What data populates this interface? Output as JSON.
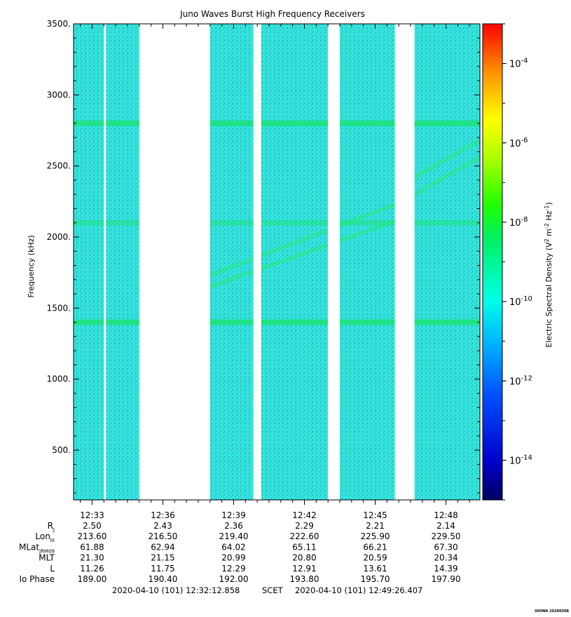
{
  "chart_data": {
    "type": "heatmap",
    "title": "Juno Waves Burst High Frequency Receivers",
    "ylabel": "Frequency (kHz)",
    "ylim": [
      150,
      3500
    ],
    "yticks": [
      "3500.",
      "3000.",
      "2500.",
      "2000.",
      "1500.",
      "1000.",
      "500."
    ],
    "ytick_values": [
      3500,
      3000,
      2500,
      2000,
      1500,
      1000,
      500
    ],
    "x_tick_labels": [
      "12:33",
      "12:36",
      "12:39",
      "12:42",
      "12:45",
      "12:48"
    ],
    "xlim": [
      "12:32:12.858",
      "12:49:26.407"
    ],
    "colorbar": {
      "label": "Electric Spectral Density (V² m⁻² Hz⁻¹)",
      "label_base": "Electric Spectral Density (V",
      "label_mid": " m",
      "label_end": " Hz",
      "label_close": ")",
      "sup1": "2",
      "sup2": "-2",
      "sup3": "-1",
      "scale": "log",
      "ticks": [
        {
          "exp": "-4",
          "value": 0.0001
        },
        {
          "exp": "-6",
          "value": 1e-06
        },
        {
          "exp": "-8",
          "value": 1e-08
        },
        {
          "exp": "-10",
          "value": 1e-10
        },
        {
          "exp": "-12",
          "value": 1e-12
        },
        {
          "exp": "-14",
          "value": 1e-14
        }
      ],
      "base": "10",
      "colors": [
        "#00007f",
        "#0000ff",
        "#007fff",
        "#00ffff",
        "#00ff00",
        "#7fff00",
        "#ffff00",
        "#ff7f00",
        "#ff0000"
      ]
    },
    "data_gaps": [
      [
        "12:35:00",
        "12:38:00"
      ],
      [
        "12:39:50",
        "12:40:10"
      ],
      [
        "12:43:00",
        "12:43:30"
      ],
      [
        "12:45:50",
        "12:46:40"
      ]
    ],
    "emission_bands_khz": [
      1400,
      2100,
      2800
    ]
  },
  "ephemeris": {
    "rows": [
      {
        "label": "R",
        "sub": "J",
        "values": [
          "2.50",
          "2.43",
          "2.36",
          "2.29",
          "2.21",
          "2.14"
        ]
      },
      {
        "label": "Lon",
        "sub": "III",
        "values": [
          "213.60",
          "216.50",
          "219.40",
          "222.60",
          "225.90",
          "229.50"
        ]
      },
      {
        "label": "MLat",
        "sub": "JRM09",
        "values": [
          "61.88",
          "62.94",
          "64.02",
          "65.11",
          "66.21",
          "67.30"
        ]
      },
      {
        "label": "MLT",
        "sub": "",
        "values": [
          "21.30",
          "21.15",
          "20.99",
          "20.80",
          "20.59",
          "20.34"
        ]
      },
      {
        "label": "L",
        "sub": "",
        "values": [
          "11.26",
          "11.75",
          "12.29",
          "12.91",
          "13.61",
          "14.39"
        ]
      },
      {
        "label": "Io Phase",
        "sub": "",
        "values": [
          "189.00",
          "190.40",
          "192.00",
          "193.80",
          "195.70",
          "197.90"
        ]
      }
    ]
  },
  "footer": {
    "start": "2020-04-10 (101) 12:32:12.858",
    "scet": "SCET",
    "end": "2020-04-10 (101) 12:49:26.407",
    "credit": "UIOWA 20200308"
  }
}
